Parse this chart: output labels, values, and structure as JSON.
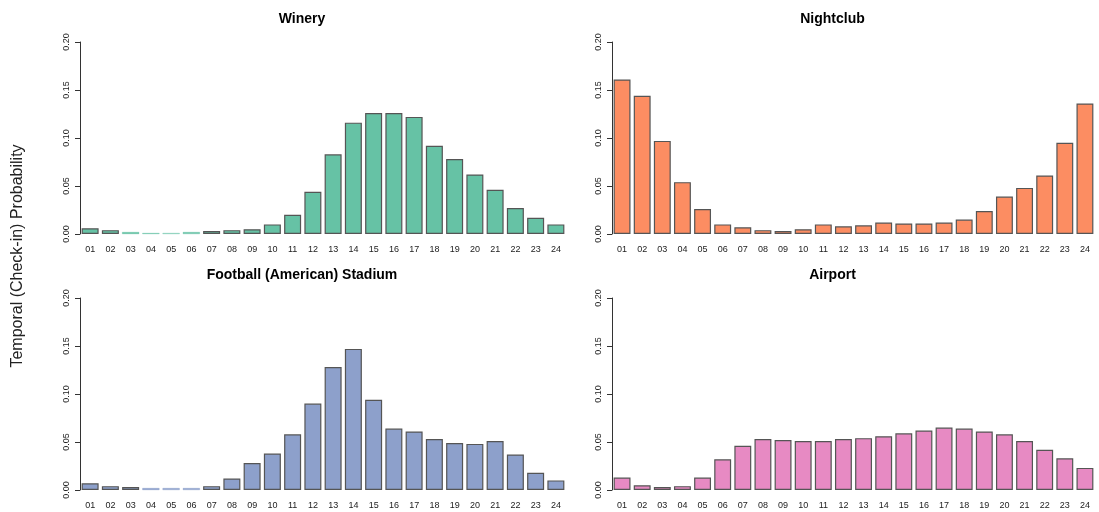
{
  "chart_data": [
    {
      "type": "bar",
      "title": "Winery",
      "ylabel": "Temporal (Check-in) Probability",
      "categories": [
        "01",
        "02",
        "03",
        "04",
        "05",
        "06",
        "07",
        "08",
        "09",
        "10",
        "11",
        "12",
        "13",
        "14",
        "15",
        "16",
        "17",
        "18",
        "19",
        "20",
        "21",
        "22",
        "23",
        "24"
      ],
      "values": [
        0.006,
        0.004,
        0.002,
        0.001,
        0.001,
        0.002,
        0.003,
        0.004,
        0.005,
        0.01,
        0.02,
        0.044,
        0.083,
        0.116,
        0.126,
        0.126,
        0.122,
        0.092,
        0.078,
        0.062,
        0.046,
        0.027,
        0.017,
        0.01
      ],
      "color": "#66c2a5",
      "ylim": [
        0,
        0.2
      ],
      "yticks": [
        {
          "value": 0,
          "label": "0.00"
        },
        {
          "value": 0.05,
          "label": "0.05"
        },
        {
          "value": 0.1,
          "label": "0.10"
        },
        {
          "value": 0.15,
          "label": "0.15"
        },
        {
          "value": 0.2,
          "label": "0.20"
        }
      ],
      "grid": false
    },
    {
      "type": "bar",
      "title": "Nightclub",
      "categories": [
        "01",
        "02",
        "03",
        "04",
        "05",
        "06",
        "07",
        "08",
        "09",
        "10",
        "11",
        "12",
        "13",
        "14",
        "15",
        "16",
        "17",
        "18",
        "19",
        "20",
        "21",
        "22",
        "23",
        "24"
      ],
      "values": [
        0.161,
        0.144,
        0.097,
        0.054,
        0.026,
        0.01,
        0.007,
        0.004,
        0.003,
        0.005,
        0.01,
        0.008,
        0.009,
        0.012,
        0.011,
        0.011,
        0.012,
        0.015,
        0.024,
        0.039,
        0.048,
        0.061,
        0.095,
        0.136
      ],
      "color": "#fc8d62",
      "ylim": [
        0,
        0.2
      ],
      "yticks": [
        {
          "value": 0,
          "label": "0.00"
        },
        {
          "value": 0.05,
          "label": "0.05"
        },
        {
          "value": 0.1,
          "label": "0.10"
        },
        {
          "value": 0.15,
          "label": "0.15"
        },
        {
          "value": 0.2,
          "label": "0.20"
        }
      ],
      "grid": false
    },
    {
      "type": "bar",
      "title": "Football (American) Stadium",
      "categories": [
        "01",
        "02",
        "03",
        "04",
        "05",
        "06",
        "07",
        "08",
        "09",
        "10",
        "11",
        "12",
        "13",
        "14",
        "15",
        "16",
        "17",
        "18",
        "19",
        "20",
        "21",
        "22",
        "23",
        "24"
      ],
      "values": [
        0.007,
        0.004,
        0.003,
        0.002,
        0.002,
        0.002,
        0.004,
        0.012,
        0.028,
        0.038,
        0.058,
        0.09,
        0.128,
        0.147,
        0.094,
        0.064,
        0.061,
        0.053,
        0.049,
        0.048,
        0.051,
        0.037,
        0.018,
        0.01
      ],
      "color": "#8da0cb",
      "ylim": [
        0,
        0.2
      ],
      "yticks": [
        {
          "value": 0,
          "label": "0.00"
        },
        {
          "value": 0.05,
          "label": "0.05"
        },
        {
          "value": 0.1,
          "label": "0.10"
        },
        {
          "value": 0.15,
          "label": "0.15"
        },
        {
          "value": 0.2,
          "label": "0.20"
        }
      ],
      "grid": false
    },
    {
      "type": "bar",
      "title": "Airport",
      "categories": [
        "01",
        "02",
        "03",
        "04",
        "05",
        "06",
        "07",
        "08",
        "09",
        "10",
        "11",
        "12",
        "13",
        "14",
        "15",
        "16",
        "17",
        "18",
        "19",
        "20",
        "21",
        "22",
        "23",
        "24"
      ],
      "values": [
        0.013,
        0.005,
        0.003,
        0.004,
        0.013,
        0.032,
        0.046,
        0.053,
        0.052,
        0.051,
        0.051,
        0.053,
        0.054,
        0.056,
        0.059,
        0.062,
        0.065,
        0.064,
        0.061,
        0.058,
        0.051,
        0.042,
        0.033,
        0.023
      ],
      "color": "#e78ac3",
      "ylim": [
        0,
        0.2
      ],
      "yticks": [
        {
          "value": 0,
          "label": "0.00"
        },
        {
          "value": 0.05,
          "label": "0.05"
        },
        {
          "value": 0.1,
          "label": "0.10"
        },
        {
          "value": 0.15,
          "label": "0.15"
        },
        {
          "value": 0.2,
          "label": "0.20"
        }
      ],
      "grid": false
    }
  ]
}
